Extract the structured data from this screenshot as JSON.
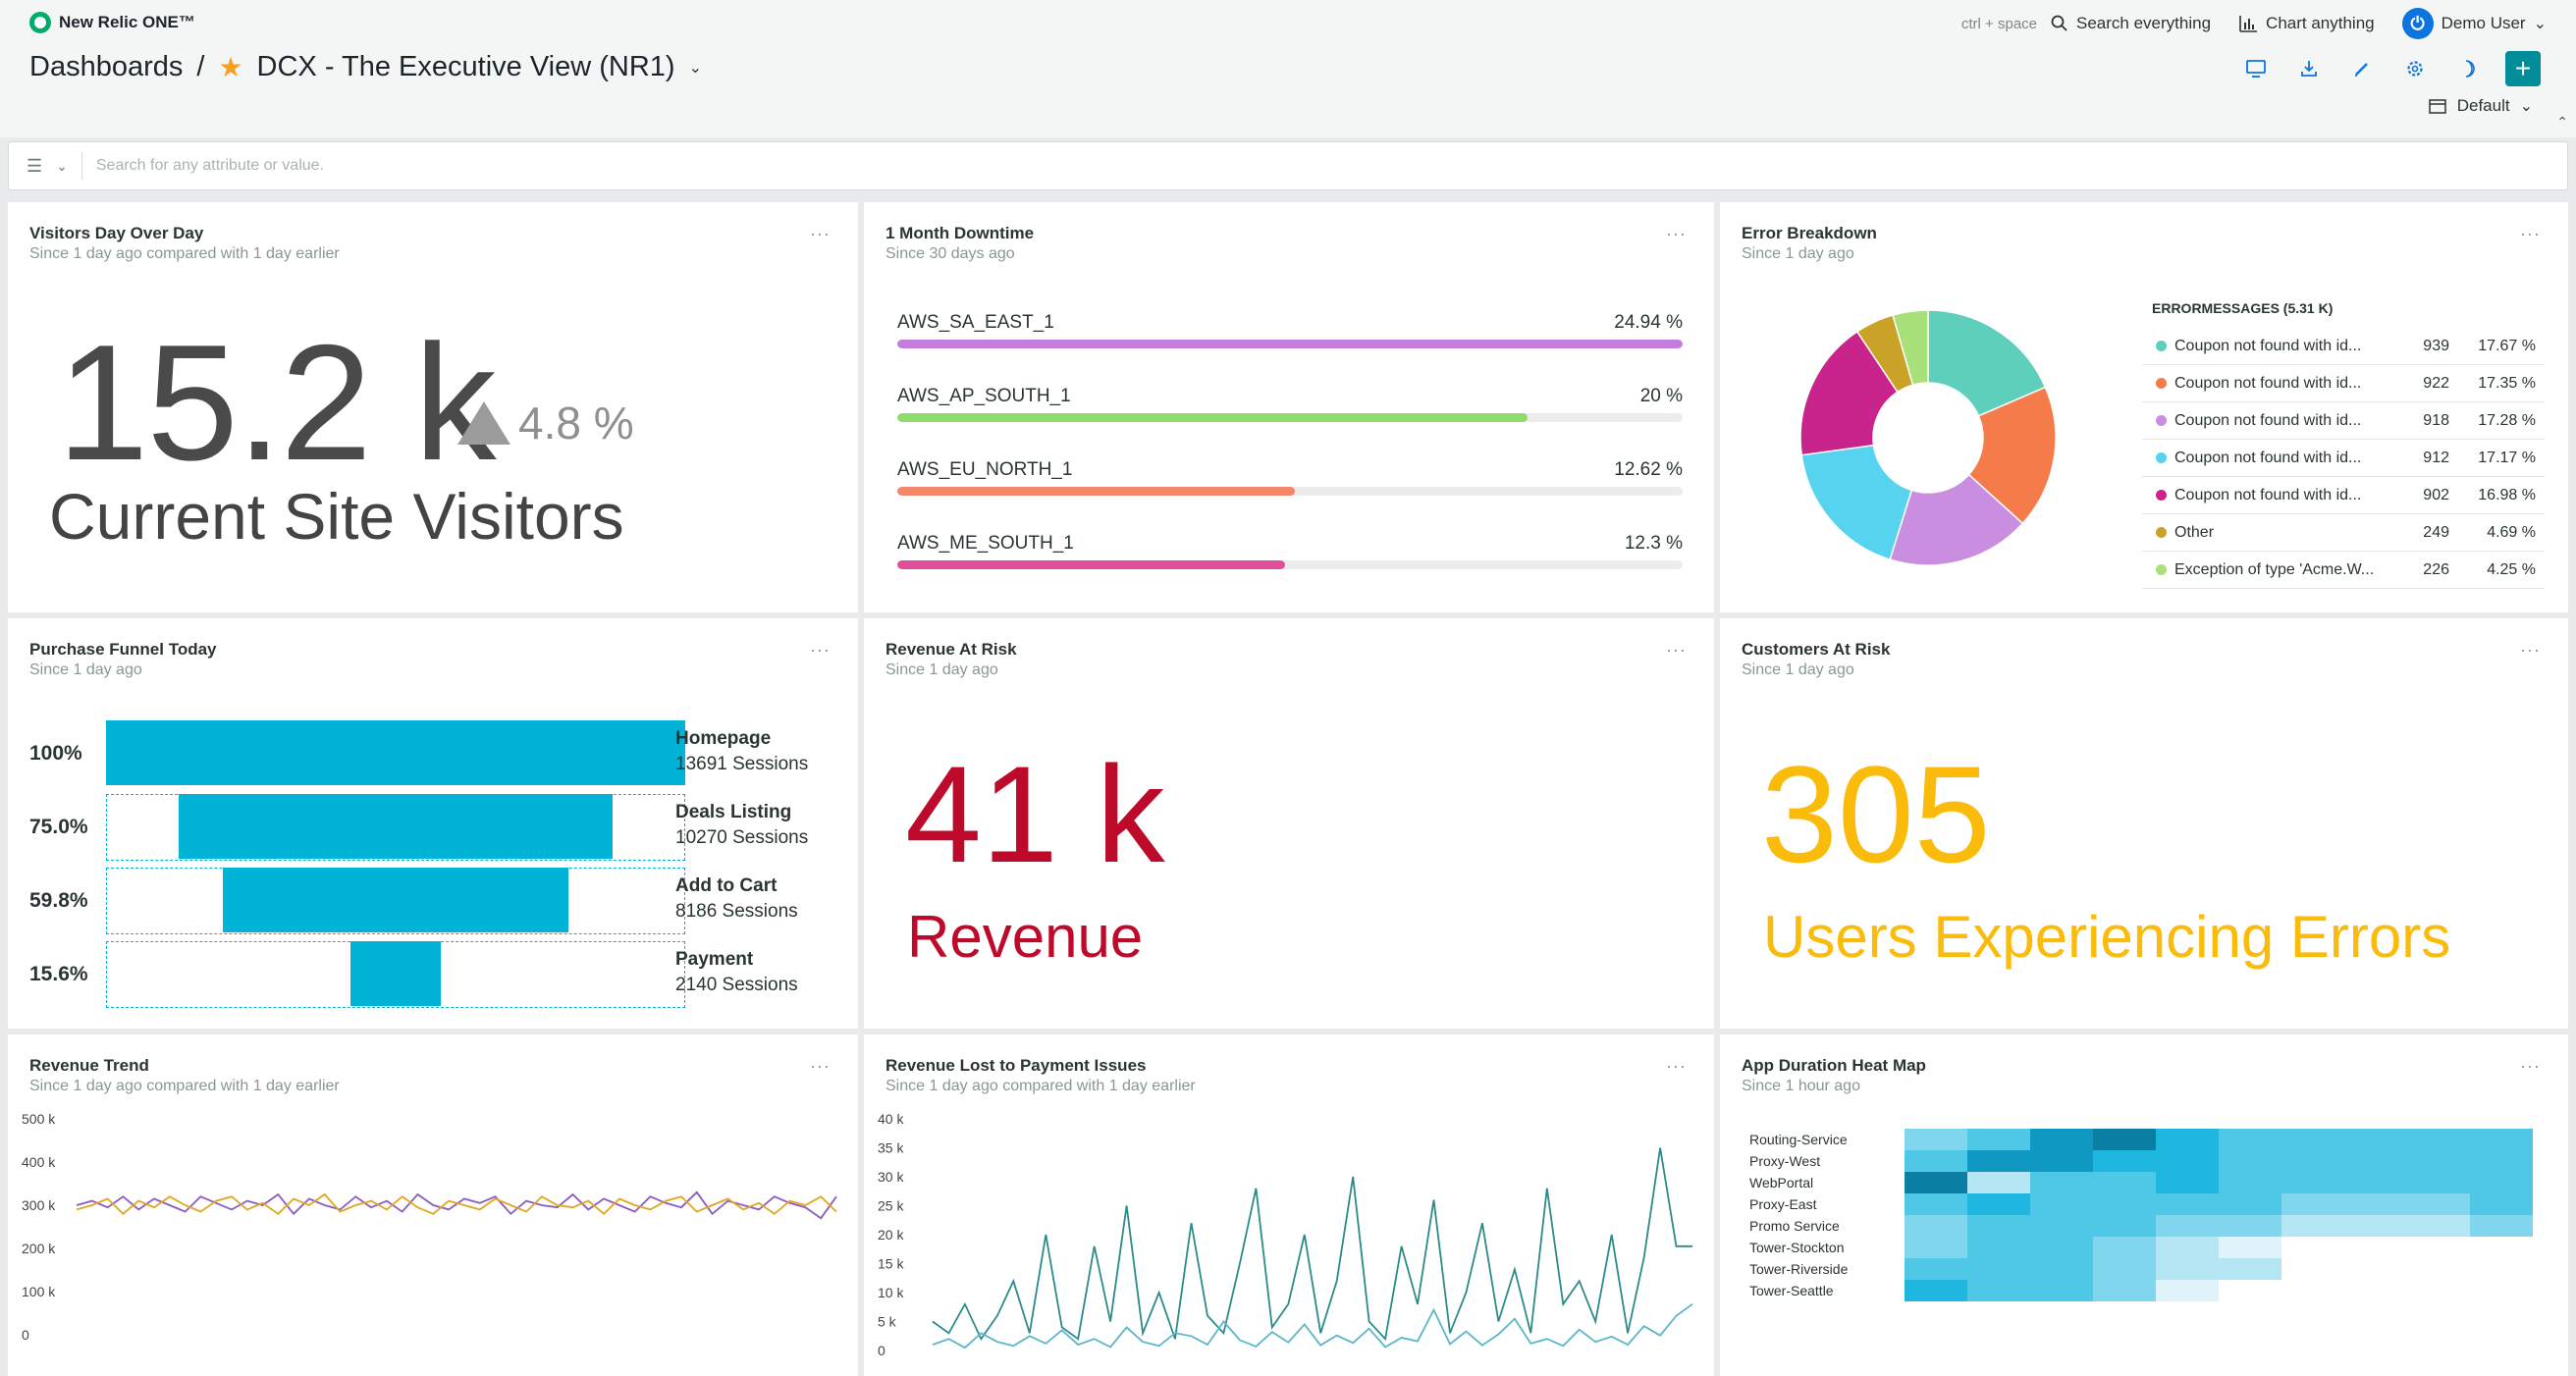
{
  "app": {
    "logo_text": "New Relic ONE™"
  },
  "top_right": {
    "shortcut": "ctrl + space",
    "search_label": "Search everything",
    "chart_label": "Chart anything",
    "user_name": "Demo User"
  },
  "breadcrumb": {
    "root": "Dashboards",
    "separator": "/",
    "dashboard_name": "DCX - The Executive View (NR1)"
  },
  "time_picker": {
    "label": "Default"
  },
  "filter": {
    "placeholder": "Search for any attribute or value."
  },
  "widgets": {
    "visitors": {
      "title": "Visitors Day Over Day",
      "subtitle": "Since 1 day ago compared with 1 day earlier",
      "value": "15.2 k",
      "delta": "4.8 %",
      "label": "Current Site Visitors"
    },
    "downtime": {
      "title": "1 Month Downtime",
      "subtitle": "Since 30 days ago",
      "rows": [
        {
          "label": "AWS_SA_EAST_1",
          "pct": "24.94 %",
          "value": 24.94,
          "color": "#c47ddc"
        },
        {
          "label": "AWS_AP_SOUTH_1",
          "pct": "20 %",
          "value": 20,
          "color": "#8fdc6c"
        },
        {
          "label": "AWS_EU_NORTH_1",
          "pct": "12.62 %",
          "value": 12.62,
          "color": "#f5866a"
        },
        {
          "label": "AWS_ME_SOUTH_1",
          "pct": "12.3 %",
          "value": 12.3,
          "color": "#e0509a"
        }
      ]
    },
    "errors": {
      "title": "Error Breakdown",
      "subtitle": "Since 1 day ago",
      "legend_title": "ERRORMESSAGES (5.31 K)",
      "rows": [
        {
          "name": "Coupon not found with id...",
          "count": "939",
          "pct": "17.67 %",
          "value": 17.67,
          "color": "#5ecfbb"
        },
        {
          "name": "Coupon not found with id...",
          "count": "922",
          "pct": "17.35 %",
          "value": 17.35,
          "color": "#f57c4a"
        },
        {
          "name": "Coupon not found with id...",
          "count": "918",
          "pct": "17.28 %",
          "value": 17.28,
          "color": "#c98ee0"
        },
        {
          "name": "Coupon not found with id...",
          "count": "912",
          "pct": "17.17 %",
          "value": 17.17,
          "color": "#55d3ef"
        },
        {
          "name": "Coupon not found with id...",
          "count": "902",
          "pct": "16.98 %",
          "value": 16.98,
          "color": "#c9248c"
        },
        {
          "name": "Other",
          "count": "249",
          "pct": "4.69 %",
          "value": 4.69,
          "color": "#c9a227"
        },
        {
          "name": "Exception of type 'Acme.W...",
          "count": "226",
          "pct": "4.25 %",
          "value": 4.25,
          "color": "#a8e07a"
        }
      ]
    },
    "funnel": {
      "title": "Purchase Funnel Today",
      "subtitle": "Since 1 day ago",
      "steps": [
        {
          "pct": "100%",
          "value": 100,
          "name": "Homepage",
          "sessions": "13691 Sessions"
        },
        {
          "pct": "75.0%",
          "value": 75.0,
          "name": "Deals Listing",
          "sessions": "10270 Sessions"
        },
        {
          "pct": "59.8%",
          "value": 59.8,
          "name": "Add to Cart",
          "sessions": "8186 Sessions"
        },
        {
          "pct": "15.6%",
          "value": 15.6,
          "name": "Payment",
          "sessions": "2140 Sessions"
        }
      ]
    },
    "revenue_risk": {
      "title": "Revenue At Risk",
      "subtitle": "Since 1 day ago",
      "value": "41 k",
      "label": "Revenue"
    },
    "customers_risk": {
      "title": "Customers At Risk",
      "subtitle": "Since 1 day ago",
      "value": "305",
      "label": "Users Experiencing Errors"
    },
    "revenue_trend": {
      "title": "Revenue Trend",
      "subtitle": "Since 1 day ago compared with 1 day earlier"
    },
    "revenue_lost": {
      "title": "Revenue Lost to Payment Issues",
      "subtitle": "Since 1 day ago compared with 1 day earlier"
    },
    "heatmap": {
      "title": "App Duration Heat Map",
      "subtitle": "Since 1 hour ago"
    }
  },
  "chart_data": [
    {
      "type": "line",
      "name": "revenue-trend",
      "ytick_labels": [
        "500 k",
        "400 k",
        "300 k",
        "200 k",
        "100 k",
        "0"
      ],
      "ylim": [
        0,
        500000
      ],
      "series": [
        {
          "color": "#8c5bbf",
          "values": [
            300000,
            310000,
            295000,
            320000,
            290000,
            315000,
            300000,
            285000,
            320000,
            305000,
            290000,
            310000,
            300000,
            325000,
            280000,
            315000,
            300000,
            290000,
            320000,
            295000,
            310000,
            285000,
            325000,
            300000,
            290000,
            315000,
            305000,
            320000,
            280000,
            310000,
            300000,
            295000,
            325000,
            290000,
            315000,
            300000,
            285000,
            320000,
            305000,
            295000,
            330000,
            280000,
            310000,
            300000,
            290000,
            320000,
            305000,
            295000,
            270000,
            320000
          ]
        },
        {
          "color": "#e0a61f",
          "values": [
            290000,
            300000,
            315000,
            280000,
            310000,
            295000,
            320000,
            300000,
            285000,
            310000,
            320000,
            290000,
            305000,
            280000,
            315000,
            300000,
            325000,
            285000,
            300000,
            310000,
            290000,
            320000,
            295000,
            280000,
            310000,
            300000,
            290000,
            315000,
            300000,
            285000,
            320000,
            300000,
            295000,
            310000,
            280000,
            315000,
            300000,
            290000,
            310000,
            320000,
            285000,
            300000,
            315000,
            290000,
            305000,
            280000,
            310000,
            300000,
            320000,
            285000
          ]
        }
      ]
    },
    {
      "type": "line",
      "name": "revenue-lost",
      "ytick_labels": [
        "40 k",
        "35 k",
        "30 k",
        "25 k",
        "20 k",
        "15 k",
        "10 k",
        "5 k",
        "0"
      ],
      "ylim": [
        0,
        40000
      ],
      "series": [
        {
          "color": "#2e8a8a",
          "values": [
            5000,
            3000,
            8000,
            2000,
            6000,
            12000,
            3000,
            20000,
            4000,
            2000,
            18000,
            5000,
            25000,
            3000,
            10000,
            2000,
            22000,
            6000,
            3000,
            15000,
            28000,
            4000,
            8000,
            20000,
            3000,
            12000,
            30000,
            5000,
            2000,
            18000,
            8000,
            26000,
            3000,
            10000,
            22000,
            5000,
            14000,
            3000,
            28000,
            8000,
            12000,
            5000,
            20000,
            3000,
            16000,
            35000,
            18000,
            18000
          ]
        },
        {
          "color": "#5bb7c8",
          "values": [
            1000,
            2000,
            500,
            3000,
            1500,
            800,
            2500,
            1200,
            3500,
            1000,
            2000,
            600,
            4000,
            1500,
            800,
            3000,
            2500,
            1000,
            5000,
            1800,
            700,
            3200,
            1400,
            4500,
            900,
            2600,
            1300,
            3800,
            600,
            2200,
            1600,
            7000,
            1100,
            3300,
            900,
            2800,
            5500,
            1200,
            2000,
            800,
            3600,
            1500,
            2400,
            1000,
            4200,
            2600,
            6000,
            8000
          ]
        }
      ]
    },
    {
      "type": "heatmap",
      "name": "app-duration",
      "rows": [
        "Routing-Service",
        "Proxy-West",
        "WebPortal",
        "Proxy-East",
        "Promo Service",
        "Tower-Stockton",
        "Tower-Riverside",
        "Tower-Seattle"
      ],
      "colors": [
        "#ffffff",
        "#dff4fa",
        "#b4e6f4",
        "#7fd6ee",
        "#4fc7e6",
        "#1fb6df",
        "#0f99c2",
        "#0a7ea3"
      ],
      "values": [
        [
          3,
          4,
          6,
          7,
          5,
          4,
          4,
          4,
          4,
          4
        ],
        [
          4,
          6,
          6,
          5,
          5,
          4,
          4,
          4,
          4,
          4
        ],
        [
          7,
          2,
          4,
          4,
          5,
          4,
          4,
          4,
          4,
          4
        ],
        [
          4,
          5,
          4,
          4,
          4,
          4,
          3,
          3,
          3,
          4
        ],
        [
          3,
          4,
          4,
          4,
          3,
          3,
          2,
          2,
          2,
          3
        ],
        [
          3,
          4,
          4,
          3,
          2,
          1,
          0,
          0,
          0,
          0
        ],
        [
          4,
          4,
          4,
          3,
          2,
          2,
          0,
          0,
          0,
          0
        ],
        [
          5,
          4,
          4,
          3,
          1,
          0,
          0,
          0,
          0,
          0
        ]
      ]
    }
  ]
}
